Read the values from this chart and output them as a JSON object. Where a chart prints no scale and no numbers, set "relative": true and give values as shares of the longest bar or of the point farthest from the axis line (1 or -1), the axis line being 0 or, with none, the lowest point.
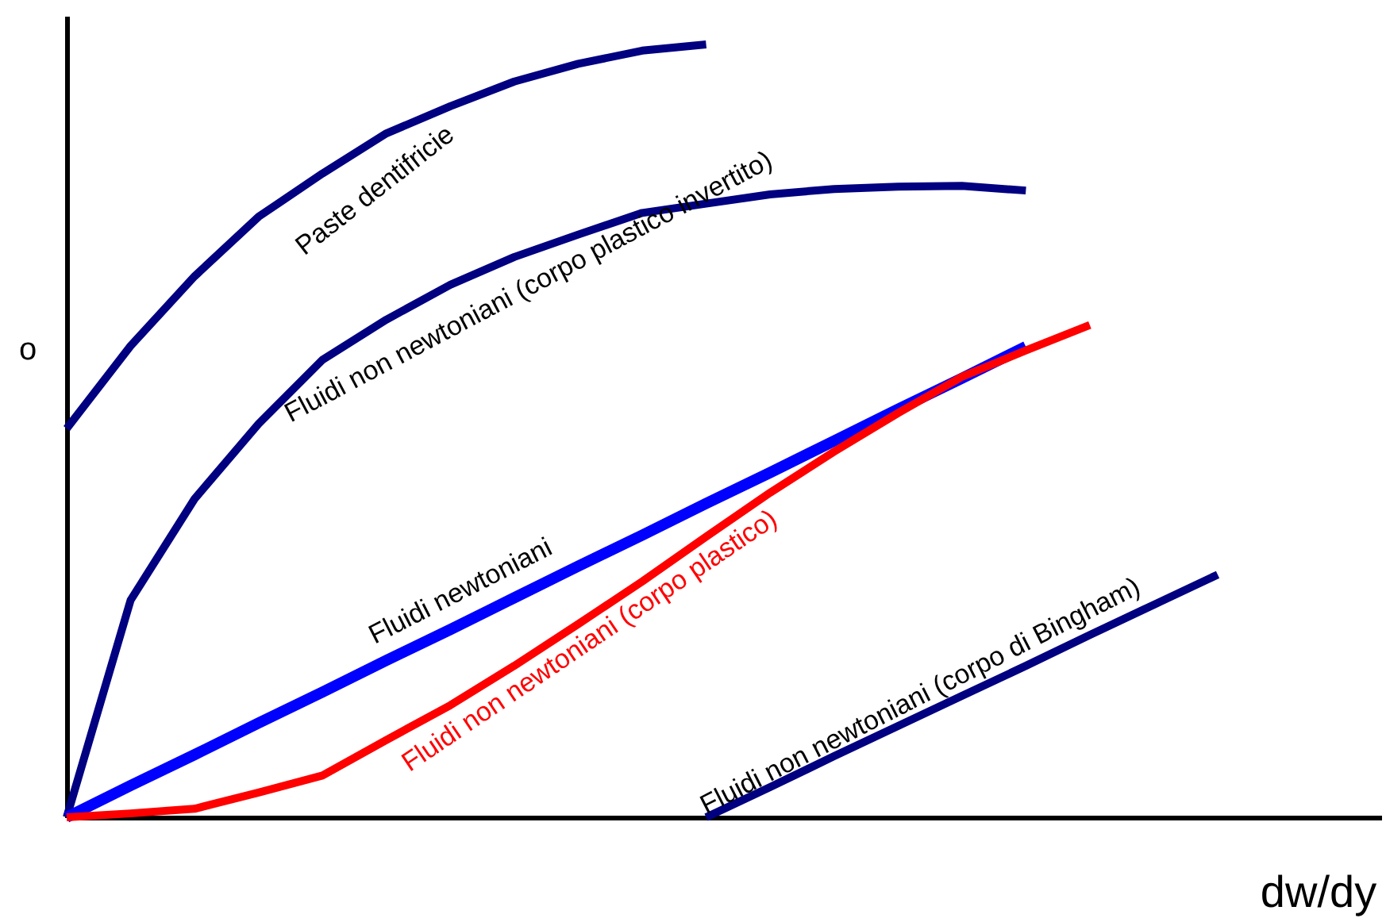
{
  "chart_data": {
    "type": "line",
    "xlabel": "dw/dy",
    "ylabel": "o",
    "relative": true,
    "tick_labels": false,
    "categories": [
      null,
      null,
      null,
      null,
      null,
      null,
      null,
      null,
      null,
      null,
      null,
      null,
      null,
      null,
      null,
      null,
      null,
      null,
      null
    ],
    "series": [
      {
        "name": "Paste dentifricie",
        "color": "#000080",
        "values": [
          0.503,
          0.61,
          0.7,
          0.777,
          0.833,
          0.885,
          0.92,
          0.952,
          0.975,
          0.992,
          1,
          null,
          null,
          null,
          null,
          null,
          null,
          null,
          null
        ]
      },
      {
        "name": "Fluidi non newtoniani (corpo plastico invertito)",
        "color": "#000080",
        "values": [
          0,
          0.281,
          0.412,
          0.509,
          0.592,
          0.644,
          0.689,
          0.725,
          0.754,
          0.782,
          0.794,
          0.806,
          0.813,
          0.816,
          0.817,
          0.811,
          null,
          null,
          null
        ]
      },
      {
        "name": "Fluidi newtoniani",
        "color": "#0000ff",
        "values": [
          0,
          0.041,
          0.081,
          0.122,
          0.162,
          0.203,
          0.243,
          0.284,
          0.325,
          0.365,
          0.406,
          0.446,
          0.487,
          0.528,
          0.568,
          0.609,
          null,
          null,
          null
        ]
      },
      {
        "name": "Fluidi non newtoniani (corpo plastico)",
        "color": "#ff0000",
        "values": [
          0,
          0.005,
          0.011,
          0.032,
          0.054,
          0.1,
          0.145,
          0.196,
          0.25,
          0.305,
          0.363,
          0.42,
          0.473,
          0.523,
          0.57,
          0.604,
          0.637,
          null,
          null
        ]
      },
      {
        "name": "Fluidi non newtoniani (corpo di Bingham)",
        "color": "#000080",
        "values": [
          null,
          null,
          null,
          null,
          null,
          null,
          null,
          null,
          null,
          null,
          0,
          0.039,
          0.079,
          0.118,
          0.157,
          0.196,
          0.236,
          0.275,
          0.314
        ]
      }
    ]
  }
}
